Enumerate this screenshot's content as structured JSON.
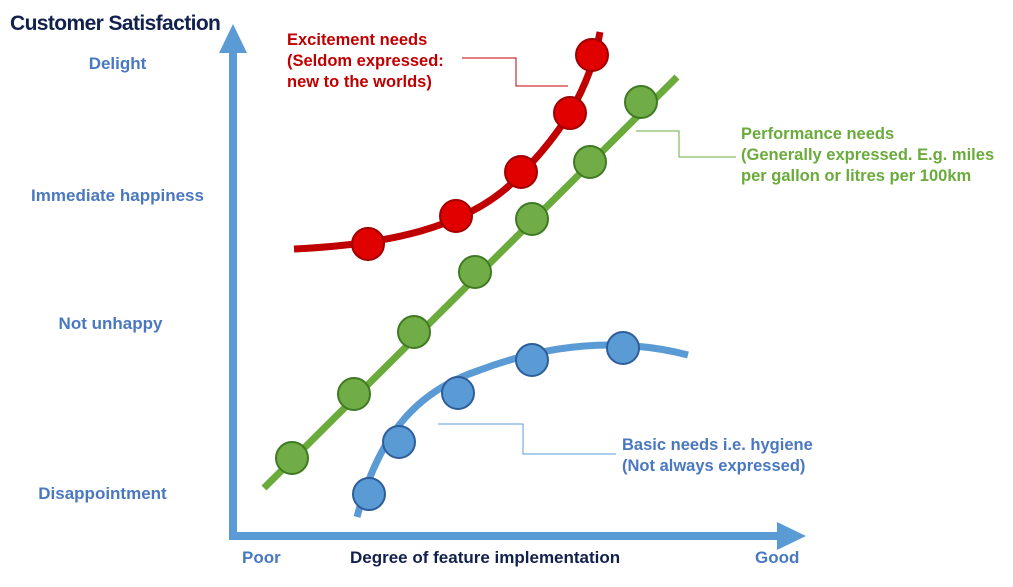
{
  "y_axis": {
    "title": "Customer Satisfaction",
    "levels": [
      "Delight",
      "Immediate happiness",
      "Not unhappy",
      "Disappointment"
    ]
  },
  "x_axis": {
    "title": "Degree of feature implementation",
    "low_label": "Poor",
    "high_label": "Good"
  },
  "curves": {
    "excitement": {
      "label": "Excitement needs\n(Seldom expressed:\nnew to the worlds)",
      "color": "#c00000"
    },
    "performance": {
      "label": "Performance needs\n(Generally expressed. E.g. miles\nper gallon or litres per 100km",
      "color": "#6aab3c"
    },
    "basic": {
      "label": "Basic needs i.e. hygiene\n(Not always expressed)",
      "color": "#4a78c0"
    }
  },
  "axis_color": "#5b9bd5"
}
